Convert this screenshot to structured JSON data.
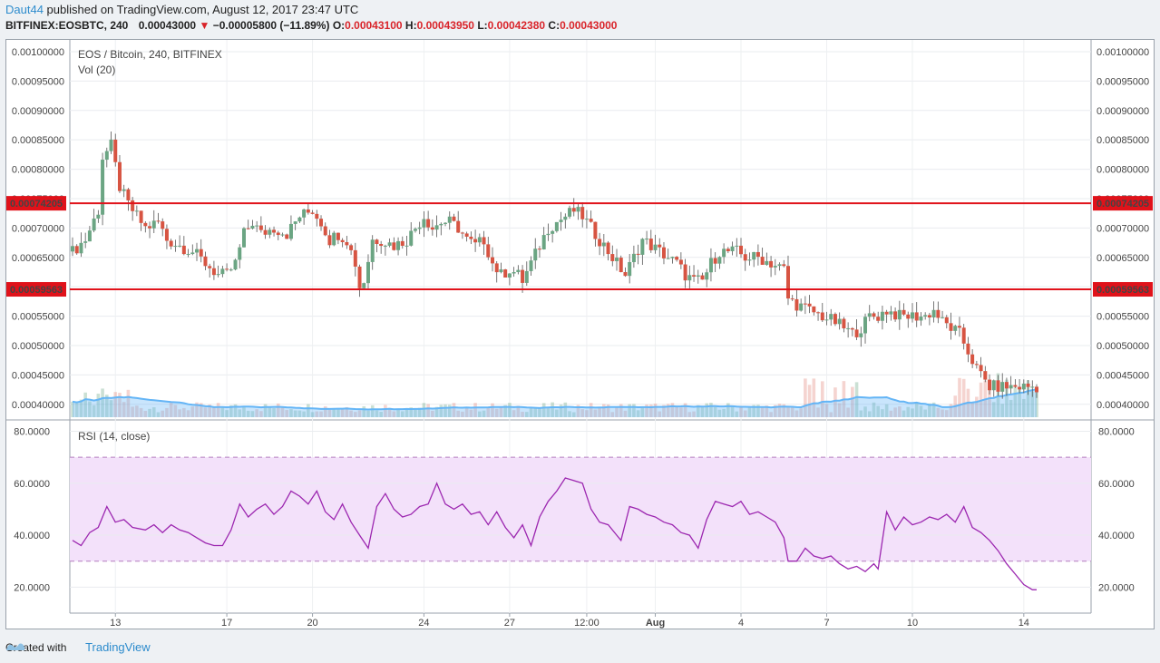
{
  "header": {
    "author": "Daut44",
    "published": "published on TradingView.com, August 12, 2017 23:47 UTC",
    "symbol": "BITFINEX:EOSBTC, 240",
    "price": "0.00043000",
    "change_arrow": "▼",
    "change": "−0.00005800 (−11.89%)",
    "open_label": "O:",
    "open": "0.00043100",
    "high_label": "H:",
    "high": "0.00043950",
    "low_label": "L:",
    "low": "0.00042380",
    "close_label": "C:",
    "close": "0.00043000"
  },
  "footer": {
    "created_with": "Created with",
    "brand": "TradingView"
  },
  "colors": {
    "up": "#6ba583",
    "down": "#d75442",
    "level": "#e0121a",
    "volume_ma": "#64b5f6",
    "rsi_line": "#9c27b0",
    "rsi_band": "#f3e1fa"
  },
  "chart_data": [
    {
      "type": "candlestick",
      "title": "EOS / Bitcoin, 240, BITFINEX",
      "indicator": "Vol (20)",
      "y_ticks": [
        "0.00100000",
        "0.00095000",
        "0.00090000",
        "0.00085000",
        "0.00080000",
        "0.00075000",
        "0.00070000",
        "0.00065000",
        "0.00060000",
        "0.00055000",
        "0.00050000",
        "0.00045000",
        "0.00040000"
      ],
      "ylim": [
        0.000375,
        0.00102
      ],
      "x_ticks": [
        "13",
        "17",
        "20",
        "24",
        "27",
        "12:00",
        "Aug",
        "4",
        "7",
        "10",
        "14"
      ],
      "horizontal_levels": [
        {
          "value": 0.00074205,
          "label": "0.00074205"
        },
        {
          "value": 0.00059563,
          "label": "0.00059563"
        }
      ],
      "anchors": [
        [
          0,
          0.00066
        ],
        [
          3,
          0.00068
        ],
        [
          6,
          0.00073
        ],
        [
          7,
          0.00082
        ],
        [
          9,
          0.00084
        ],
        [
          11,
          0.00077
        ],
        [
          13,
          0.00074
        ],
        [
          15,
          0.00072
        ],
        [
          17,
          0.0007
        ],
        [
          20,
          0.00071
        ],
        [
          22,
          0.00068
        ],
        [
          25,
          0.00067
        ],
        [
          28,
          0.00066
        ],
        [
          31,
          0.00064
        ],
        [
          34,
          0.00062
        ],
        [
          36,
          0.00062
        ],
        [
          38,
          0.00064
        ],
        [
          40,
          0.00069
        ],
        [
          42,
          0.00071
        ],
        [
          44,
          0.00069
        ],
        [
          47,
          0.0007
        ],
        [
          50,
          0.00069
        ],
        [
          53,
          0.00072
        ],
        [
          56,
          0.00073
        ],
        [
          58,
          0.00071
        ],
        [
          60,
          0.00068
        ],
        [
          62,
          0.00069
        ],
        [
          64,
          0.00068
        ],
        [
          66,
          0.00064
        ],
        [
          67,
          0.0006
        ],
        [
          68,
          0.00061
        ],
        [
          70,
          0.00068
        ],
        [
          72,
          0.00068
        ],
        [
          75,
          0.00067
        ],
        [
          78,
          0.00068
        ],
        [
          80,
          0.0007
        ],
        [
          82,
          0.00072
        ],
        [
          84,
          0.0007
        ],
        [
          86,
          0.00071
        ],
        [
          88,
          0.00071
        ],
        [
          90,
          0.0007
        ],
        [
          92,
          0.00068
        ],
        [
          94,
          0.00067
        ],
        [
          96,
          0.00068
        ],
        [
          98,
          0.00064
        ],
        [
          100,
          0.00062
        ],
        [
          102,
          0.00063
        ],
        [
          104,
          0.00062
        ],
        [
          105,
          0.00061
        ],
        [
          107,
          0.00064
        ],
        [
          109,
          0.00067
        ],
        [
          111,
          0.0007
        ],
        [
          113,
          0.00071
        ],
        [
          115,
          0.00072
        ],
        [
          117,
          0.00073
        ],
        [
          119,
          0.00072
        ],
        [
          121,
          0.0007
        ],
        [
          123,
          0.00068
        ],
        [
          125,
          0.00066
        ],
        [
          127,
          0.00064
        ],
        [
          129,
          0.00062
        ],
        [
          131,
          0.00065
        ],
        [
          133,
          0.00068
        ],
        [
          135,
          0.00067
        ],
        [
          137,
          0.00066
        ],
        [
          139,
          0.00065
        ],
        [
          141,
          0.00064
        ],
        [
          143,
          0.00062
        ],
        [
          145,
          0.00061
        ],
        [
          147,
          0.00061
        ],
        [
          149,
          0.00064
        ],
        [
          151,
          0.00066
        ],
        [
          153,
          0.00066
        ],
        [
          155,
          0.00066
        ],
        [
          157,
          0.00065
        ],
        [
          160,
          0.00065
        ],
        [
          163,
          0.00064
        ],
        [
          166,
          0.00063
        ],
        [
          167,
          0.00058
        ],
        [
          169,
          0.00057
        ],
        [
          172,
          0.00056
        ],
        [
          175,
          0.00055
        ],
        [
          178,
          0.00054
        ],
        [
          180,
          0.00053
        ],
        [
          182,
          0.00052
        ],
        [
          184,
          0.00053
        ],
        [
          186,
          0.00055
        ],
        [
          188,
          0.00055
        ],
        [
          190,
          0.00056
        ],
        [
          193,
          0.00055
        ],
        [
          196,
          0.00055
        ],
        [
          199,
          0.00055
        ],
        [
          201,
          0.00056
        ],
        [
          203,
          0.00054
        ],
        [
          205,
          0.00053
        ],
        [
          207,
          0.00052
        ],
        [
          209,
          0.00049
        ],
        [
          211,
          0.00046
        ],
        [
          213,
          0.00044
        ],
        [
          214,
          0.00043
        ]
      ]
    },
    {
      "type": "line",
      "title": "RSI (14, close)",
      "y_ticks": [
        "80.0000",
        "60.0000",
        "40.0000",
        "20.0000"
      ],
      "ylim": [
        10,
        84
      ],
      "band": [
        30,
        70
      ],
      "anchors": [
        [
          0,
          38
        ],
        [
          2,
          36
        ],
        [
          4,
          41
        ],
        [
          6,
          43
        ],
        [
          8,
          51
        ],
        [
          10,
          45
        ],
        [
          12,
          46
        ],
        [
          14,
          43
        ],
        [
          17,
          42
        ],
        [
          19,
          44
        ],
        [
          21,
          41
        ],
        [
          23,
          44
        ],
        [
          25,
          42
        ],
        [
          27,
          41
        ],
        [
          29,
          39
        ],
        [
          31,
          37
        ],
        [
          33,
          36
        ],
        [
          35,
          36
        ],
        [
          37,
          42
        ],
        [
          39,
          52
        ],
        [
          41,
          47
        ],
        [
          43,
          50
        ],
        [
          45,
          52
        ],
        [
          47,
          48
        ],
        [
          49,
          51
        ],
        [
          51,
          57
        ],
        [
          53,
          55
        ],
        [
          55,
          52
        ],
        [
          57,
          57
        ],
        [
          59,
          49
        ],
        [
          61,
          46
        ],
        [
          63,
          52
        ],
        [
          65,
          45
        ],
        [
          67,
          40
        ],
        [
          69,
          35
        ],
        [
          71,
          51
        ],
        [
          73,
          56
        ],
        [
          75,
          50
        ],
        [
          77,
          47
        ],
        [
          79,
          48
        ],
        [
          81,
          51
        ],
        [
          83,
          52
        ],
        [
          85,
          60
        ],
        [
          87,
          52
        ],
        [
          89,
          50
        ],
        [
          91,
          52
        ],
        [
          93,
          48
        ],
        [
          95,
          49
        ],
        [
          97,
          44
        ],
        [
          99,
          49
        ],
        [
          101,
          43
        ],
        [
          103,
          39
        ],
        [
          105,
          44
        ],
        [
          107,
          36
        ],
        [
          109,
          47
        ],
        [
          111,
          53
        ],
        [
          113,
          57
        ],
        [
          115,
          62
        ],
        [
          117,
          61
        ],
        [
          119,
          60
        ],
        [
          121,
          50
        ],
        [
          123,
          45
        ],
        [
          125,
          44
        ],
        [
          127,
          40
        ],
        [
          128,
          38
        ],
        [
          130,
          51
        ],
        [
          132,
          50
        ],
        [
          134,
          48
        ],
        [
          136,
          47
        ],
        [
          138,
          45
        ],
        [
          140,
          44
        ],
        [
          142,
          41
        ],
        [
          144,
          40
        ],
        [
          146,
          35
        ],
        [
          148,
          46
        ],
        [
          150,
          53
        ],
        [
          152,
          52
        ],
        [
          154,
          51
        ],
        [
          156,
          53
        ],
        [
          158,
          48
        ],
        [
          160,
          49
        ],
        [
          162,
          47
        ],
        [
          164,
          45
        ],
        [
          166,
          39
        ],
        [
          167,
          30
        ],
        [
          169,
          30
        ],
        [
          171,
          35
        ],
        [
          173,
          32
        ],
        [
          175,
          31
        ],
        [
          177,
          32
        ],
        [
          179,
          29
        ],
        [
          181,
          27
        ],
        [
          183,
          28
        ],
        [
          185,
          26
        ],
        [
          187,
          29
        ],
        [
          188,
          27
        ],
        [
          190,
          49
        ],
        [
          192,
          42
        ],
        [
          194,
          47
        ],
        [
          196,
          44
        ],
        [
          198,
          45
        ],
        [
          200,
          47
        ],
        [
          202,
          46
        ],
        [
          204,
          48
        ],
        [
          206,
          45
        ],
        [
          208,
          51
        ],
        [
          210,
          43
        ],
        [
          212,
          41
        ],
        [
          214,
          38
        ],
        [
          216,
          34
        ],
        [
          218,
          29
        ],
        [
          220,
          25
        ],
        [
          222,
          21
        ],
        [
          224,
          19
        ],
        [
          225,
          19
        ]
      ]
    }
  ]
}
